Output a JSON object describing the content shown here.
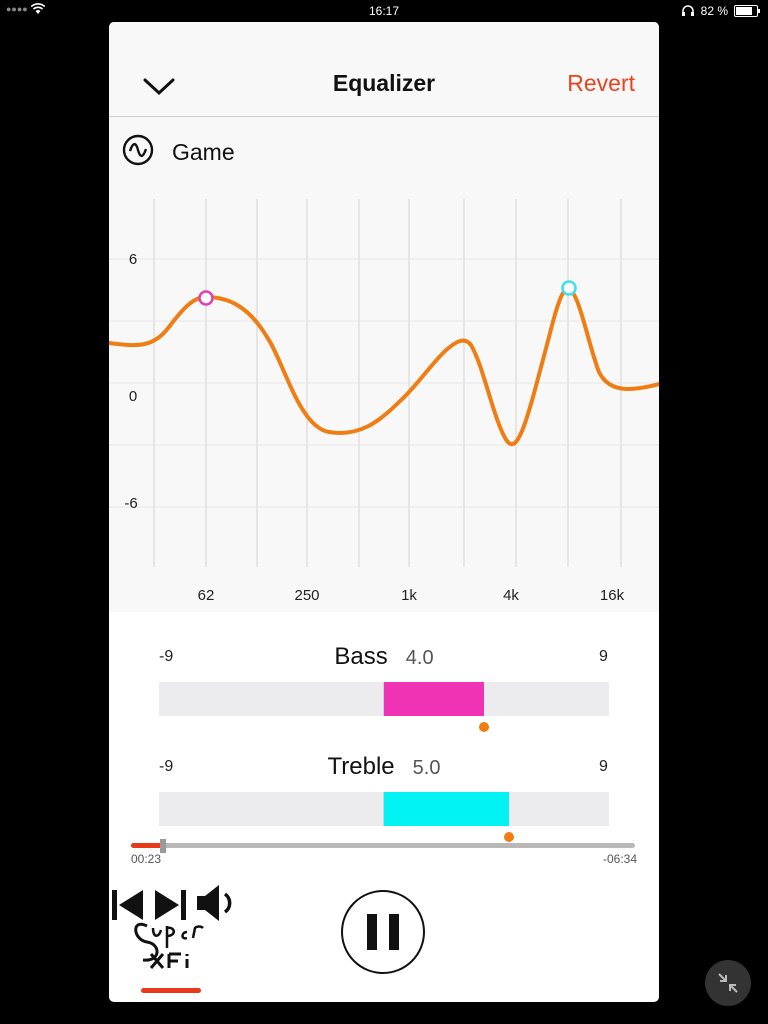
{
  "status": {
    "time": "16:17",
    "battery": "82 %",
    "battery_level": 0.82
  },
  "header": {
    "title": "Equalizer",
    "revert_label": "Revert"
  },
  "preset": {
    "name": "Game"
  },
  "graph": {
    "y_ticks": [
      "6",
      "0",
      "-6"
    ],
    "x_ticks": [
      "62",
      "250",
      "1k",
      "4k",
      "16k"
    ]
  },
  "bass": {
    "label": "Bass",
    "value": "4.0",
    "min": "-9",
    "max": "9",
    "level": 4.0,
    "color": "#f032b4"
  },
  "treble": {
    "label": "Treble",
    "value": "5.0",
    "min": "-9",
    "max": "9",
    "level": 5.0,
    "color": "#00f2f2"
  },
  "playback": {
    "elapsed": "00:23",
    "remaining": "-06:34",
    "progress": 0.063
  },
  "colors": {
    "accent": "#e8431f",
    "curve": "#f07d14",
    "marker_low": "#e040b0",
    "marker_high": "#3ee0f0"
  },
  "icons": {
    "collapse": "chevron-down-icon",
    "preset": "waveform-circle-icon",
    "prev": "skip-previous-icon",
    "play_state": "pause-icon",
    "next": "skip-next-icon",
    "volume": "speaker-icon",
    "minimize": "collapse-arrows-icon"
  }
}
